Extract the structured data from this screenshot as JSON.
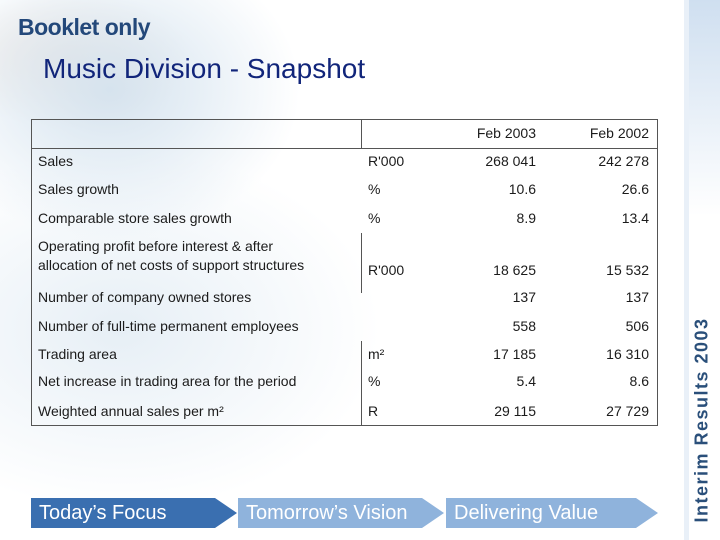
{
  "brand": {
    "booklet": "Booklet only",
    "side_text": "Interim Results 2003"
  },
  "title": "Music Division - Snapshot",
  "table": {
    "headers": {
      "label": "",
      "unit": "",
      "col1": "Feb 2003",
      "col2": "Feb 2002"
    },
    "rows": [
      {
        "label": "Sales",
        "unit": "R'000",
        "col1": "268 041",
        "col2": "242 278"
      },
      {
        "label": "Sales growth",
        "unit": "%",
        "col1": "10.6",
        "col2": "26.6"
      },
      {
        "label": "Comparable store sales growth",
        "unit": "%",
        "col1": "8.9",
        "col2": "13.4"
      },
      {
        "label": "Operating profit before interest & after allocation of net costs of support structures",
        "label_line1": "Operating profit before interest & after",
        "label_line2": "allocation of net costs of support structures",
        "unit": "R'000",
        "col1": "18 625",
        "col2": "15 532"
      },
      {
        "label": "Number of company owned stores",
        "unit": "",
        "col1": "137",
        "col2": "137"
      },
      {
        "label": "Number of full-time permanent employees",
        "unit": "",
        "col1": "558",
        "col2": "506"
      },
      {
        "label": "Trading area",
        "unit": "m²",
        "col1": "17 185",
        "col2": "16 310"
      },
      {
        "label": "Net increase in trading area for the period",
        "unit": "%",
        "col1": "5.4",
        "col2": "8.6"
      },
      {
        "label": "Weighted annual sales per m²",
        "unit": "R",
        "col1": "29 115",
        "col2": "27 729"
      }
    ]
  },
  "footer": {
    "steps": [
      "Today’s Focus",
      "Tomorrow’s Vision",
      "Delivering Value"
    ]
  },
  "colors": {
    "title": "#11257a",
    "brand": "#23487a",
    "chevron_active": "#3a6fb0",
    "chevron": "#8fb3dc"
  }
}
